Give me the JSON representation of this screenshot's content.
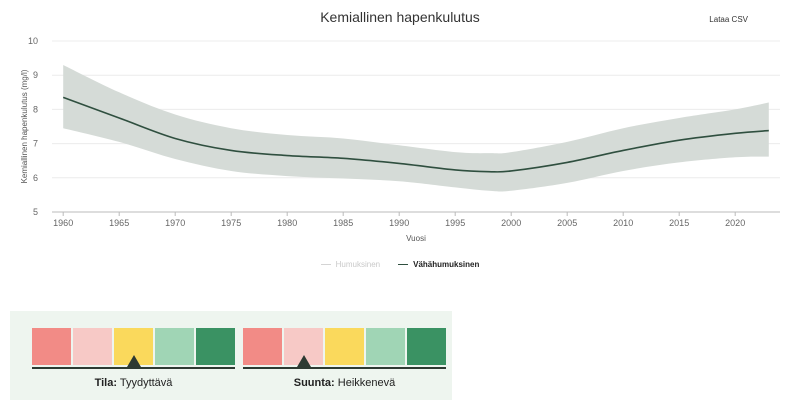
{
  "page": {
    "title": "Kemiallinen hapenkulutus",
    "download_label": "Lataa CSV"
  },
  "chart_data": {
    "type": "line",
    "title": "Kemiallinen hapenkulutus",
    "xlabel": "Vuosi",
    "ylabel": "Kemiallinen hapenkulutus (mg/l)",
    "xlim": [
      1959,
      2024
    ],
    "ylim": [
      5,
      10
    ],
    "xticks": [
      1960,
      1965,
      1970,
      1975,
      1980,
      1985,
      1990,
      1995,
      2000,
      2005,
      2010,
      2015,
      2020
    ],
    "yticks": [
      5,
      6,
      7,
      8,
      9,
      10
    ],
    "grid": true,
    "legend_position": "bottom",
    "series": [
      {
        "name": "Humuksinen",
        "visible": false,
        "values": []
      },
      {
        "name": "Vähähumuksinen",
        "visible": true,
        "color": "#2f4f3f",
        "band_color": "#d5dbd7",
        "x": [
          1960,
          1965,
          1970,
          1975,
          1980,
          1985,
          1990,
          1995,
          1998,
          2000,
          2005,
          2010,
          2015,
          2020,
          2023
        ],
        "y": [
          8.35,
          7.75,
          7.15,
          6.8,
          6.65,
          6.57,
          6.42,
          6.23,
          6.18,
          6.2,
          6.45,
          6.8,
          7.1,
          7.3,
          7.38
        ],
        "lower": [
          7.45,
          7.05,
          6.55,
          6.2,
          6.05,
          5.98,
          5.9,
          5.72,
          5.62,
          5.62,
          5.85,
          6.2,
          6.45,
          6.6,
          6.62
        ],
        "upper": [
          9.3,
          8.5,
          7.85,
          7.45,
          7.25,
          7.15,
          6.95,
          6.75,
          6.72,
          6.75,
          7.05,
          7.45,
          7.75,
          8.0,
          8.2
        ]
      }
    ]
  },
  "status": {
    "colors": [
      "#f28b86",
      "#f7c9c6",
      "#fad95c",
      "#a0d5b5",
      "#3a9263"
    ],
    "tila": {
      "label": "Tila:",
      "value": "Tyydyttävä",
      "level_index": 2
    },
    "suunta": {
      "label": "Suunta:",
      "value": "Heikkenevä",
      "level_index": 1
    }
  }
}
